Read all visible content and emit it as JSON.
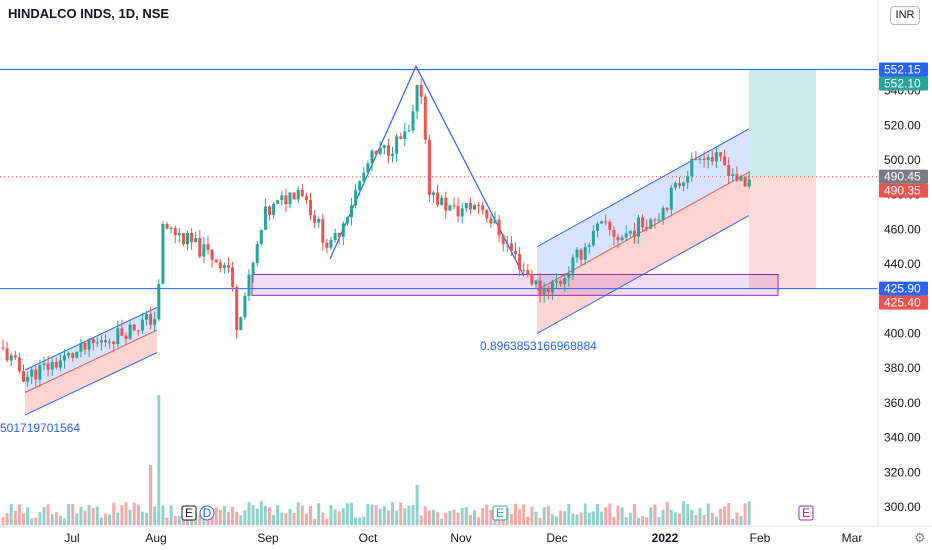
{
  "header": {
    "title": "HINDALCO INDS, 1D, NSE",
    "currency": "INR"
  },
  "colors": {
    "up": "#26a69a",
    "down": "#ef5350",
    "line": "#2962ff",
    "zone": "#9c27b0"
  },
  "chart_data": {
    "type": "candlestick",
    "symbol": "HINDALCO INDS",
    "interval": "1D",
    "exchange": "NSE",
    "ylim": [
      290,
      560
    ],
    "y_ticks": [
      "300.00",
      "320.00",
      "340.00",
      "360.00",
      "380.00",
      "400.00",
      "420.00",
      "440.00",
      "460.00",
      "480.00",
      "500.00",
      "520.00",
      "540.00"
    ],
    "x_ticks": [
      "Jul",
      "Aug",
      "Sep",
      "Oct",
      "Nov",
      "Dec",
      "2022",
      "Feb",
      "Mar"
    ],
    "price_tags": [
      {
        "label": "552.15",
        "value": 552.15,
        "color": "#2962ff"
      },
      {
        "label": "552.10",
        "value": 552.1,
        "color": "#26a69a"
      },
      {
        "label": "490.45",
        "value": 490.45,
        "color": "#787b86"
      },
      {
        "label": "490.35",
        "value": 490.35,
        "color": "#ef5350"
      },
      {
        "label": "425.90",
        "value": 425.9,
        "color": "#2962ff"
      },
      {
        "label": "425.40",
        "value": 425.4,
        "color": "#ef5350"
      }
    ],
    "annotations": {
      "fib_label_1": "0.8963853166968884",
      "fib_label_2": "501719701564"
    },
    "horizontal_lines": [
      552.15,
      425.9
    ],
    "current_price": 490.35,
    "support_zone": [
      426,
      434
    ],
    "events": [
      "E",
      "D",
      "E",
      "E"
    ]
  }
}
